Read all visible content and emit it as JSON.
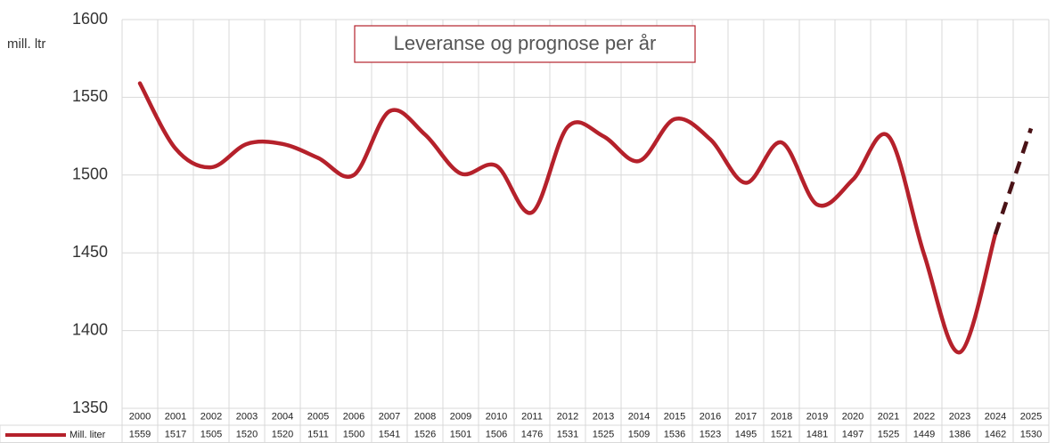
{
  "chart_data": {
    "type": "line",
    "title": "Leveranse og prognose per år",
    "y_label": "mill. ltr",
    "categories": [
      "2000",
      "2001",
      "2002",
      "2003",
      "2004",
      "2005",
      "2006",
      "2007",
      "2008",
      "2009",
      "2010",
      "2011",
      "2012",
      "2013",
      "2014",
      "2015",
      "2016",
      "2017",
      "2018",
      "2019",
      "2020",
      "2021",
      "2022",
      "2023",
      "2024",
      "2025"
    ],
    "series": [
      {
        "name": "Mill. liter",
        "color": "#b5212b",
        "values": [
          1559,
          1517,
          1505,
          1520,
          1520,
          1511,
          1500,
          1541,
          1526,
          1501,
          1506,
          1476,
          1531,
          1525,
          1509,
          1536,
          1523,
          1495,
          1521,
          1481,
          1497,
          1525,
          1449,
          1386,
          1462,
          1530
        ]
      }
    ],
    "forecast_color": "#4a1216",
    "ylim": [
      1350,
      1600
    ],
    "yticks": [
      1350,
      1400,
      1450,
      1500,
      1550,
      1600
    ],
    "grid": true
  }
}
